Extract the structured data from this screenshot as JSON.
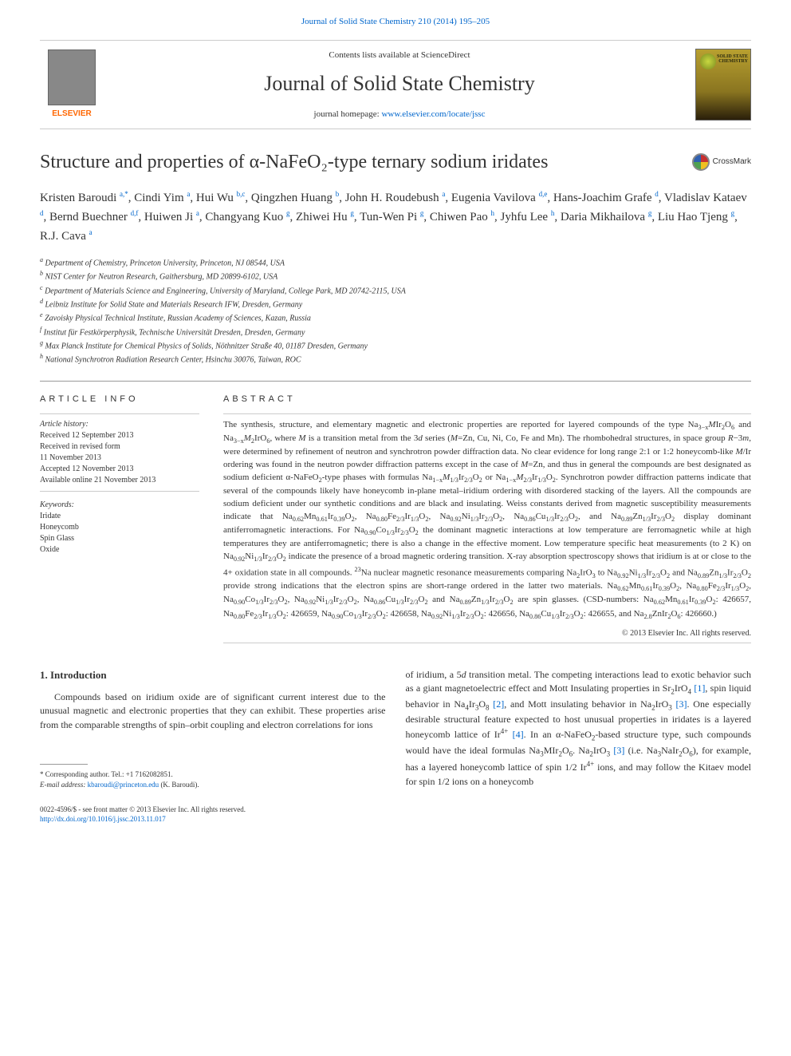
{
  "top_citation": "Journal of Solid State Chemistry 210 (2014) 195–205",
  "banner": {
    "contents_prefix": "Contents lists available at ",
    "contents_link": "ScienceDirect",
    "journal_title": "Journal of Solid State Chemistry",
    "homepage_prefix": "journal homepage: ",
    "homepage_link": "www.elsevier.com/locate/jssc",
    "elsevier_label": "ELSEVIER",
    "cover_text": "SOLID STATE CHEMISTRY"
  },
  "crossmark_label": "CrossMark",
  "article_title": "Structure and properties of α-NaFeO₂-type ternary sodium iridates",
  "authors_html": "Kristen Baroudi <span class='sup'>a,*</span>, Cindi Yim <span class='sup'>a</span>, Hui Wu <span class='sup'>b,c</span>, Qingzhen Huang <span class='sup'>b</span>, John H. Roudebush <span class='sup'>a</span>, Eugenia Vavilova <span class='sup'>d,e</span>, Hans-Joachim Grafe <span class='sup'>d</span>, Vladislav Kataev <span class='sup'>d</span>, Bernd Buechner <span class='sup'>d,f</span>, Huiwen Ji <span class='sup'>a</span>, Changyang Kuo <span class='sup'>g</span>, Zhiwei Hu <span class='sup'>g</span>, Tun-Wen Pi <span class='sup'>g</span>, Chiwen Pao <span class='sup'>h</span>, Jyhfu Lee <span class='sup'>h</span>, Daria Mikhailova <span class='sup'>g</span>, Liu Hao Tjeng <span class='sup'>g</span>, R.J. Cava <span class='sup'>a</span>",
  "affiliations": [
    {
      "sup": "a",
      "text": "Department of Chemistry, Princeton University, Princeton, NJ 08544, USA"
    },
    {
      "sup": "b",
      "text": "NIST Center for Neutron Research, Gaithersburg, MD 20899-6102, USA"
    },
    {
      "sup": "c",
      "text": "Department of Materials Science and Engineering, University of Maryland, College Park, MD 20742-2115, USA"
    },
    {
      "sup": "d",
      "text": "Leibniz Institute for Solid State and Materials Research IFW, Dresden, Germany"
    },
    {
      "sup": "e",
      "text": "Zavoisky Physical Technical Institute, Russian Academy of Sciences, Kazan, Russia"
    },
    {
      "sup": "f",
      "text": "Institut für Festkörperphysik, Technische Universität Dresden, Dresden, Germany"
    },
    {
      "sup": "g",
      "text": "Max Planck Institute for Chemical Physics of Solids, Nöthnitzer Straße 40, 01187 Dresden, Germany"
    },
    {
      "sup": "h",
      "text": "National Synchrotron Radiation Research Center, Hsinchu 30076, Taiwan, ROC"
    }
  ],
  "article_info": {
    "heading": "ARTICLE INFO",
    "history_label": "Article history:",
    "history": [
      "Received 12 September 2013",
      "Received in revised form",
      "11 November 2013",
      "Accepted 12 November 2013",
      "Available online 21 November 2013"
    ],
    "keywords_label": "Keywords:",
    "keywords": [
      "Iridate",
      "Honeycomb",
      "Spin Glass",
      "Oxide"
    ]
  },
  "abstract": {
    "heading": "ABSTRACT",
    "text_html": "The synthesis, structure, and elementary magnetic and electronic properties are reported for layered compounds of the type Na<sub>3−x</sub><i>M</i>Ir<sub>2</sub>O<sub>6</sub> and Na<sub>3−x</sub><i>M</i><sub>2</sub>IrO<sub>6</sub>, where <i>M</i> is a transition metal from the 3<i>d</i> series (<i>M</i>=Zn, Cu, Ni, Co, Fe and Mn). The rhombohedral structures, in space group <i>R</i>−3<i>m</i>, were determined by refinement of neutron and synchrotron powder diffraction data. No clear evidence for long range 2:1 or 1:2 honeycomb-like <i>M</i>/Ir ordering was found in the neutron powder diffraction patterns except in the case of <i>M</i>=Zn, and thus in general the compounds are best designated as sodium deficient α-NaFeO<sub>2</sub>-type phases with formulas Na<sub>1−x</sub><i>M</i><sub>1/3</sub>Ir<sub>2/3</sub>O<sub>2</sub> or Na<sub>1−x</sub><i>M</i><sub>2/3</sub>Ir<sub>1/3</sub>O<sub>2</sub>. Synchrotron powder diffraction patterns indicate that several of the compounds likely have honeycomb in-plane metal–iridium ordering with disordered stacking of the layers. All the compounds are sodium deficient under our synthetic conditions and are black and insulating. Weiss constants derived from magnetic susceptibility measurements indicate that Na<sub>0.62</sub>Mn<sub>0.61</sub>Ir<sub>0.39</sub>O<sub>2</sub>, Na<sub>0.80</sub>Fe<sub>2/3</sub>Ir<sub>1/3</sub>O<sub>2</sub>, Na<sub>0.92</sub>Ni<sub>1/3</sub>Ir<sub>2/3</sub>O<sub>2</sub>, Na<sub>0.86</sub>Cu<sub>1/3</sub>Ir<sub>2/3</sub>O<sub>2</sub>, and Na<sub>0.89</sub>Zn<sub>1/3</sub>Ir<sub>2/3</sub>O<sub>2</sub> display dominant antiferromagnetic interactions. For Na<sub>0.90</sub>Co<sub>1/3</sub>Ir<sub>2/3</sub>O<sub>2</sub> the dominant magnetic interactions at low temperature are ferromagnetic while at high temperatures they are antiferromagnetic; there is also a change in the effective moment. Low temperature specific heat measurements (to 2 K) on Na<sub>0.92</sub>Ni<sub>1/3</sub>Ir<sub>2/3</sub>O<sub>2</sub> indicate the presence of a broad magnetic ordering transition. X-ray absorption spectroscopy shows that iridium is at or close to the 4+ oxidation state in all compounds. <sup class='txt'>23</sup>Na nuclear magnetic resonance measurements comparing Na<sub>2</sub>IrO<sub>3</sub> to Na<sub>0.92</sub>Ni<sub>1/3</sub>Ir<sub>2/3</sub>O<sub>2</sub> and Na<sub>0.89</sub>Zn<sub>1/3</sub>Ir<sub>2/3</sub>O<sub>2</sub> provide strong indications that the electron spins are short-range ordered in the latter two materials. Na<sub>0.62</sub>Mn<sub>0.61</sub>Ir<sub>0.39</sub>O<sub>2</sub>, Na<sub>0.80</sub>Fe<sub>2/3</sub>Ir<sub>1/3</sub>O<sub>2</sub>, Na<sub>0.90</sub>Co<sub>1/3</sub>Ir<sub>2/3</sub>O<sub>2</sub>, Na<sub>0.92</sub>Ni<sub>1/3</sub>Ir<sub>2/3</sub>O<sub>2</sub>, Na<sub>0.86</sub>Cu<sub>1/3</sub>Ir<sub>2/3</sub>O<sub>2</sub> and Na<sub>0.89</sub>Zn<sub>1/3</sub>Ir<sub>2/3</sub>O<sub>2</sub> are spin glasses. (CSD-numbers: Na<sub>0.62</sub>Mn<sub>0.61</sub>Ir<sub>0.39</sub>O<sub>2</sub>: 426657, Na<sub>0.80</sub>Fe<sub>2/3</sub>Ir<sub>1/3</sub>O<sub>2</sub>: 426659, Na<sub>0.90</sub>Co<sub>1/3</sub>Ir<sub>2/3</sub>O<sub>2</sub>: 426658, Na<sub>0.92</sub>Ni<sub>1/3</sub>Ir<sub>2/3</sub>O<sub>2</sub>: 426656, Na<sub>0.86</sub>Cu<sub>1/3</sub>Ir<sub>2/3</sub>O<sub>2</sub>: 426655, and Na<sub>2.8</sub>ZnIr<sub>2</sub>O<sub>6</sub>: 426660.)",
    "copyright": "© 2013 Elsevier Inc. All rights reserved."
  },
  "intro": {
    "heading": "1.  Introduction",
    "col1_html": "Compounds based on iridium oxide are of significant current interest due to the unusual magnetic and electronic properties that they can exhibit. These properties arise from the comparable strengths of spin–orbit coupling and electron correlations for ions",
    "col2_html": "of iridium, a 5<i>d</i> transition metal. The competing interactions lead to exotic behavior such as a giant magnetoelectric effect and Mott Insulating properties in Sr<sub>2</sub>IrO<sub>4</sub> <span class='ref-link'>[1]</span>, spin liquid behavior in Na<sub>4</sub>Ir<sub>3</sub>O<sub>8</sub> <span class='ref-link'>[2]</span>, and Mott insulating behavior in Na<sub>2</sub>IrO<sub>3</sub> <span class='ref-link'>[3]</span>. One especially desirable structural feature expected to host unusual properties in iridates is a layered honeycomb lattice of Ir<sup class='txt'>4+</sup> <span class='ref-link'>[4]</span>. In an α-NaFeO<sub>2</sub>-based structure type, such compounds would have the ideal formulas Na<sub>3</sub>MIr<sub>2</sub>O<sub>6</sub>. Na<sub>2</sub>IrO<sub>3</sub> <span class='ref-link'>[3]</span> (i.e. Na<sub>3</sub>NaIr<sub>2</sub>O<sub>6</sub>), for example, has a layered honeycomb lattice of spin 1/2 Ir<sup class='txt'>4+</sup> ions, and may follow the Kitaev model for spin 1/2 ions on a honeycomb"
  },
  "footnote": {
    "corresponding": "* Corresponding author. Tel.: +1 7162082851.",
    "email_label": "E-mail address: ",
    "email": "kbaroudi@princeton.edu",
    "email_suffix": " (K. Baroudi)."
  },
  "bottom": {
    "issn": "0022-4596/$ - see front matter © 2013 Elsevier Inc. All rights reserved.",
    "doi": "http://dx.doi.org/10.1016/j.jssc.2013.11.017"
  },
  "colors": {
    "link": "#0066cc",
    "elsevier_orange": "#ff6600",
    "text": "#333333",
    "border": "#cccccc"
  }
}
